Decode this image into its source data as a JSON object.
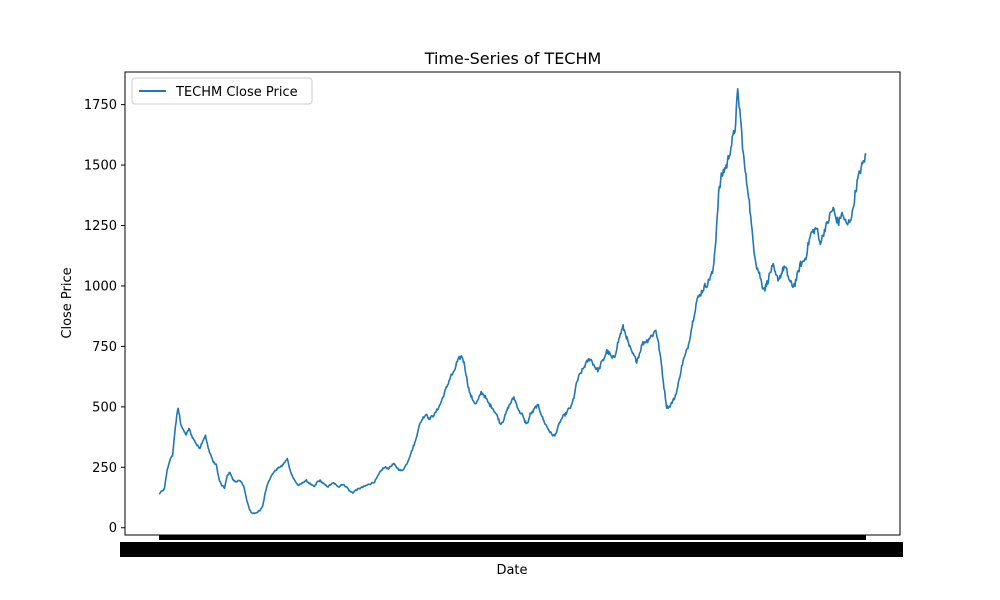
{
  "chart_data": {
    "type": "line",
    "title": "Time-Series of TECHM",
    "xlabel": "Date",
    "ylabel": "Close Price",
    "ylim": [
      -30,
      1885
    ],
    "yticks": [
      0,
      250,
      500,
      750,
      1000,
      1250,
      1500,
      1750
    ],
    "grid": false,
    "legend": {
      "position": "top-left",
      "entries": [
        "TECHM Close Price"
      ]
    },
    "colors": {
      "series": "#1f77b4"
    },
    "series": [
      {
        "name": "TECHM Close Price",
        "values": [
          140,
          150,
          160,
          240,
          280,
          300,
          420,
          495,
          430,
          400,
          385,
          410,
          380,
          360,
          340,
          330,
          360,
          380,
          330,
          300,
          270,
          260,
          200,
          175,
          165,
          215,
          230,
          200,
          190,
          195,
          190,
          175,
          120,
          80,
          60,
          60,
          65,
          70,
          90,
          150,
          190,
          210,
          230,
          240,
          250,
          255,
          270,
          285,
          240,
          210,
          190,
          175,
          180,
          190,
          195,
          185,
          175,
          170,
          190,
          195,
          185,
          175,
          170,
          180,
          185,
          175,
          170,
          180,
          175,
          165,
          150,
          145,
          155,
          160,
          165,
          170,
          175,
          180,
          185,
          190,
          210,
          230,
          245,
          250,
          245,
          255,
          265,
          250,
          240,
          235,
          250,
          270,
          300,
          330,
          360,
          410,
          440,
          460,
          470,
          450,
          460,
          470,
          490,
          510,
          540,
          570,
          600,
          630,
          640,
          680,
          700,
          710,
          670,
          600,
          550,
          530,
          510,
          530,
          560,
          550,
          530,
          510,
          500,
          480,
          460,
          430,
          440,
          470,
          500,
          520,
          540,
          510,
          480,
          470,
          440,
          430,
          470,
          480,
          500,
          505,
          470,
          440,
          420,
          400,
          385,
          380,
          410,
          440,
          460,
          470,
          490,
          500,
          540,
          600,
          630,
          650,
          670,
          690,
          700,
          680,
          660,
          650,
          680,
          700,
          730,
          720,
          700,
          710,
          760,
          800,
          830,
          800,
          760,
          730,
          710,
          690,
          720,
          760,
          770,
          775,
          790,
          800,
          820,
          760,
          680,
          580,
          500,
          500,
          520,
          540,
          580,
          640,
          690,
          720,
          760,
          820,
          880,
          940,
          960,
          980,
          1000,
          1010,
          1040,
          1060,
          1200,
          1380,
          1450,
          1480,
          1500,
          1550,
          1600,
          1650,
          1800,
          1700,
          1550,
          1450,
          1380,
          1250,
          1150,
          1080,
          1050,
          1000,
          990,
          1020,
          1060,
          1080,
          1040,
          1030,
          1050,
          1080,
          1060,
          1020,
          1000,
          1010,
          1050,
          1090,
          1100,
          1120,
          1180,
          1220,
          1230,
          1240,
          1180,
          1200,
          1240,
          1260,
          1300,
          1320,
          1280,
          1260,
          1300,
          1280,
          1250,
          1270,
          1300,
          1380,
          1440,
          1480,
          1510,
          1540
        ]
      }
    ]
  }
}
